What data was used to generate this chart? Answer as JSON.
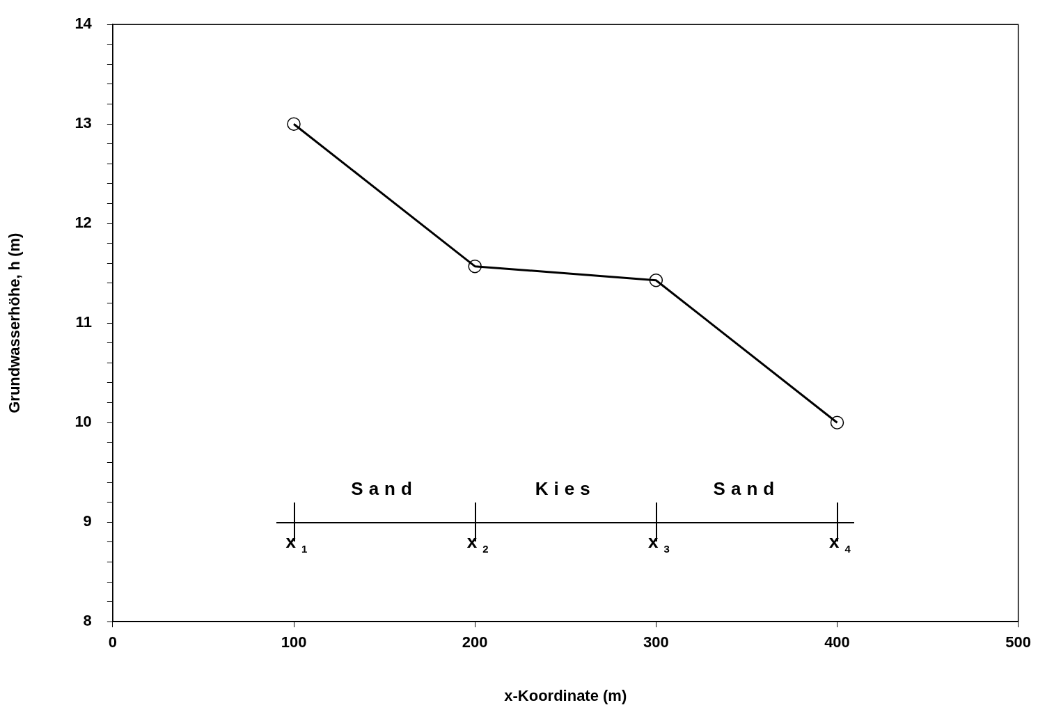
{
  "chart_data": {
    "type": "line",
    "xlabel": "x-Koordinate (m)",
    "ylabel": "Grundwasserhöhe, h (m)",
    "x": [
      100,
      200,
      300,
      400
    ],
    "values": [
      13,
      11.57,
      11.43,
      10
    ],
    "color": "#000000",
    "marker": "circle",
    "line_style": "solid",
    "grid": false,
    "legend": false,
    "xlim": [
      0,
      500
    ],
    "xticks": [
      0,
      100,
      200,
      300,
      400,
      500
    ],
    "ylim": [
      8,
      14
    ],
    "yticks": [
      8,
      {
        "value": 8.2,
        "label": null
      },
      {
        "value": 8.4,
        "label": null
      },
      {
        "value": 8.6,
        "label": null
      },
      {
        "value": 8.8,
        "label": null
      },
      9,
      {
        "value": 9.2,
        "label": null
      },
      {
        "value": 9.4,
        "label": null
      },
      {
        "value": 9.6,
        "label": null
      },
      {
        "value": 9.8,
        "label": null
      },
      10,
      {
        "value": 10.2,
        "label": null
      },
      {
        "value": 10.4,
        "label": null
      },
      {
        "value": 10.6,
        "label": null
      },
      {
        "value": 10.8,
        "label": null
      },
      11,
      {
        "value": 11.2,
        "label": null
      },
      {
        "value": 11.4,
        "label": null
      },
      {
        "value": 11.6,
        "label": null
      },
      {
        "value": 11.8,
        "label": null
      },
      12,
      {
        "value": 12.2,
        "label": null
      },
      {
        "value": 12.4,
        "label": null
      },
      {
        "value": 12.6,
        "label": null
      },
      {
        "value": 12.8,
        "label": null
      },
      13,
      {
        "value": 13.2,
        "label": null
      },
      {
        "value": 13.4,
        "label": null
      },
      {
        "value": 13.6,
        "label": null
      },
      {
        "value": 13.8,
        "label": null
      },
      14
    ],
    "annotations": [
      "Sand",
      "Kies",
      "Sand",
      "x$_{1}$",
      "x$_{2}$",
      "x$_{3}$",
      "x$_{4}$"
    ]
  }
}
